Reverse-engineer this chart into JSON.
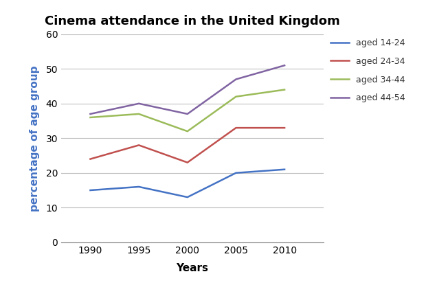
{
  "title": "Cinema attendance in the United Kingdom",
  "xlabel": "Years",
  "ylabel": "percentage of age group",
  "years": [
    1990,
    1995,
    2000,
    2005,
    2010
  ],
  "series": [
    {
      "label": "aged 14-24",
      "values": [
        15,
        16,
        13,
        20,
        21
      ],
      "color": "#4472c4"
    },
    {
      "label": "aged 24-34",
      "values": [
        24,
        28,
        23,
        33,
        33
      ],
      "color": "#c0504d"
    },
    {
      "label": "aged 34-44",
      "values": [
        36,
        37,
        32,
        42,
        44
      ],
      "color": "#9bbb59"
    },
    {
      "label": "aged 44-54",
      "values": [
        37,
        40,
        37,
        47,
        51
      ],
      "color": "#8064a2"
    }
  ],
  "ylim": [
    0,
    60
  ],
  "yticks": [
    0,
    10,
    20,
    30,
    40,
    50,
    60
  ],
  "background_color": "#ffffff",
  "title_fontsize": 13,
  "axis_label_fontsize": 11,
  "legend_fontsize": 9,
  "tick_fontsize": 10,
  "ylabel_color": "#4472c4"
}
